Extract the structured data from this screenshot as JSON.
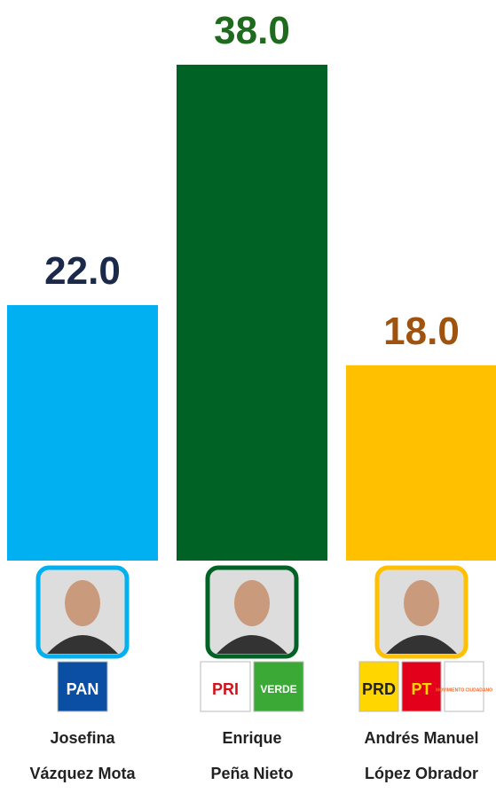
{
  "chart_data": {
    "type": "bar",
    "categories": [
      "Josefina\nVázquez Mota",
      "Enrique\nPeña Nieto",
      "Andrés  Manuel\nLópez  Obrador"
    ],
    "values": [
      22,
      38,
      18
    ],
    "value_labels": [
      "22.0",
      "38.0",
      "18.0"
    ],
    "colors": [
      "#00b0f0",
      "#006325",
      "#ffc000"
    ],
    "label_colors": [
      "#1b2a4a",
      "#1e6b1e",
      "#a0520f"
    ],
    "ylim": [
      5,
      39
    ],
    "party_logos": [
      [
        "PAN"
      ],
      [
        "PRI",
        "VERDE"
      ],
      [
        "PRD",
        "PT",
        "MOVIMIENTO CIUDADANO"
      ]
    ]
  }
}
